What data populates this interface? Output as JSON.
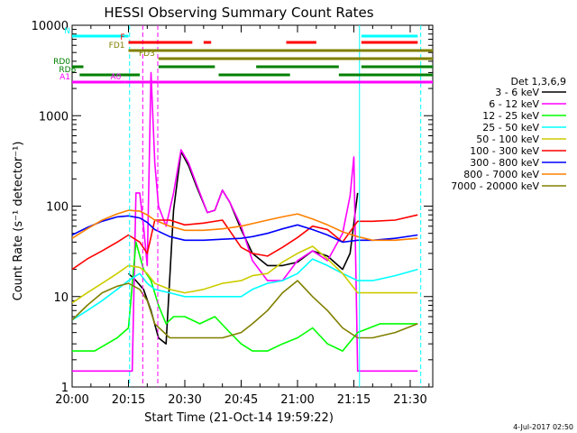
{
  "chart_data": {
    "type": "line",
    "title": "HESSI Observing Summary Count Rates",
    "xlabel": "Start Time (21-Oct-14 19:59:22)",
    "ylabel": "Count Rate (s⁻¹ detector⁻¹)",
    "ylog": true,
    "ylim": [
      1,
      10000
    ],
    "xlim": [
      0,
      96
    ],
    "x_unit": "minutes since 20:00",
    "x_ticks": [
      {
        "value": 0,
        "label": "20:00"
      },
      {
        "value": 15,
        "label": "20:15"
      },
      {
        "value": 30,
        "label": "20:30"
      },
      {
        "value": 45,
        "label": "20:45"
      },
      {
        "value": 60,
        "label": "21:00"
      },
      {
        "value": 75,
        "label": "21:15"
      },
      {
        "value": 90,
        "label": "21:30"
      }
    ],
    "y_ticks": [
      {
        "value": 1,
        "label": "1"
      },
      {
        "value": 10,
        "label": "10"
      },
      {
        "value": 100,
        "label": "100"
      },
      {
        "value": 1000,
        "label": "1000"
      },
      {
        "value": 10000,
        "label": "10000"
      }
    ],
    "legend_title": "Det 1,3,6,9",
    "legend_position": "right",
    "series": [
      {
        "name": "3 - 6 keV",
        "color": "#000000",
        "x": [
          15,
          17,
          19,
          21,
          23,
          25,
          27,
          29,
          31,
          33,
          36,
          38,
          40,
          42,
          45,
          48,
          52,
          56,
          60,
          64,
          68,
          72,
          74,
          76
        ],
        "y": [
          18,
          15,
          12,
          7,
          3.5,
          3,
          90,
          400,
          280,
          170,
          85,
          90,
          150,
          110,
          55,
          30,
          22,
          22,
          24,
          32,
          28,
          20,
          30,
          140
        ]
      },
      {
        "name": "6 - 12 keV",
        "color": "#ff00ff",
        "x": [
          0,
          6,
          12,
          15,
          16,
          17,
          18,
          19,
          20,
          21,
          22,
          23,
          25,
          27,
          29,
          31,
          33,
          36,
          38,
          40,
          42,
          45,
          48,
          52,
          56,
          60,
          64,
          68,
          72,
          74,
          75,
          76,
          80,
          86,
          92
        ],
        "y": [
          1.5,
          1.5,
          1.5,
          1.5,
          1.5,
          140,
          140,
          60,
          22,
          3000,
          300,
          100,
          60,
          140,
          420,
          300,
          180,
          85,
          90,
          150,
          110,
          60,
          25,
          15,
          15,
          25,
          32,
          25,
          50,
          130,
          350,
          1.5,
          1.5,
          1.5,
          1.5
        ]
      },
      {
        "name": "12 - 25 keV",
        "color": "#00ff00",
        "x": [
          0,
          6,
          12,
          15,
          17,
          19,
          21,
          23,
          25,
          27,
          30,
          34,
          38,
          42,
          45,
          48,
          52,
          56,
          60,
          64,
          68,
          72,
          76,
          82,
          88,
          92
        ],
        "y": [
          2.5,
          2.5,
          3.5,
          4.5,
          40,
          20,
          15,
          8,
          5,
          6,
          6,
          5,
          6,
          4,
          3,
          2.5,
          2.5,
          3,
          3.5,
          4.5,
          3,
          2.5,
          4,
          5,
          5,
          5
        ]
      },
      {
        "name": "25 - 50 keV",
        "color": "#00ffff",
        "x": [
          0,
          4,
          8,
          12,
          15,
          18,
          20,
          22,
          26,
          30,
          35,
          40,
          45,
          48,
          52,
          56,
          60,
          64,
          68,
          72,
          76,
          80,
          86,
          92
        ],
        "y": [
          5.5,
          7,
          9,
          12,
          15,
          18,
          14,
          12,
          11,
          10,
          10,
          10,
          10,
          12,
          14,
          15,
          18,
          26,
          22,
          18,
          15,
          15,
          17,
          20
        ]
      },
      {
        "name": "50 - 100 keV",
        "color": "#cccc00",
        "x": [
          0,
          4,
          8,
          12,
          15,
          18,
          20,
          22,
          26,
          30,
          35,
          40,
          45,
          48,
          52,
          56,
          60,
          64,
          68,
          72,
          76,
          80,
          86,
          92
        ],
        "y": [
          8.5,
          11,
          14,
          18,
          22,
          21,
          18,
          14,
          12,
          11,
          12,
          14,
          15,
          17,
          18,
          24,
          30,
          36,
          26,
          18,
          11,
          11,
          11,
          11
        ]
      },
      {
        "name": "100 - 300 keV",
        "color": "#ff0000",
        "x": [
          0,
          4,
          8,
          12,
          15,
          18,
          20,
          22,
          26,
          30,
          35,
          40,
          45,
          48,
          52,
          56,
          60,
          64,
          68,
          72,
          76,
          80,
          86,
          92
        ],
        "y": [
          20,
          26,
          32,
          40,
          48,
          40,
          30,
          70,
          70,
          62,
          65,
          70,
          35,
          30,
          28,
          35,
          45,
          60,
          55,
          40,
          68,
          68,
          70,
          80
        ]
      },
      {
        "name": "300 - 800 keV",
        "color": "#0000ff",
        "x": [
          0,
          4,
          8,
          12,
          15,
          18,
          20,
          22,
          26,
          30,
          35,
          40,
          45,
          48,
          52,
          56,
          60,
          64,
          68,
          72,
          76,
          80,
          86,
          92
        ],
        "y": [
          48,
          58,
          68,
          76,
          78,
          74,
          66,
          55,
          46,
          42,
          42,
          43,
          44,
          46,
          50,
          56,
          62,
          55,
          48,
          40,
          42,
          42,
          44,
          48
        ]
      },
      {
        "name": "800 - 7000 keV",
        "color": "#ff8000",
        "x": [
          0,
          4,
          8,
          12,
          15,
          18,
          20,
          22,
          26,
          30,
          35,
          40,
          45,
          48,
          52,
          56,
          60,
          64,
          68,
          72,
          76,
          80,
          86,
          92
        ],
        "y": [
          44,
          56,
          70,
          82,
          90,
          88,
          80,
          70,
          60,
          54,
          54,
          56,
          60,
          64,
          70,
          76,
          82,
          72,
          62,
          52,
          46,
          42,
          42,
          44
        ]
      },
      {
        "name": "7000 - 20000 keV",
        "color": "#808000",
        "x": [
          0,
          4,
          8,
          12,
          15,
          18,
          20,
          22,
          26,
          30,
          35,
          40,
          45,
          48,
          52,
          56,
          60,
          64,
          68,
          72,
          76,
          80,
          86,
          92
        ],
        "y": [
          5.5,
          8,
          11,
          13,
          14,
          12,
          9,
          5,
          3.5,
          3.5,
          3.5,
          3.5,
          4,
          5,
          7,
          11,
          15,
          10,
          7,
          4.5,
          3.5,
          3.5,
          4,
          5
        ]
      }
    ],
    "flag_bars": [
      {
        "label": "N",
        "color": "#00ffff",
        "segments": [
          [
            0,
            15
          ],
          [
            77,
            92
          ]
        ]
      },
      {
        "label": "F",
        "color": "#ff0000",
        "segments": [
          [
            15,
            32
          ],
          [
            35,
            37
          ],
          [
            57,
            65
          ],
          [
            77,
            92
          ]
        ]
      },
      {
        "label": "FD1",
        "color": "#808000",
        "segments": [
          [
            15,
            96
          ]
        ]
      },
      {
        "label": "FD3",
        "color": "#808000",
        "segments": [
          [
            23,
            96
          ]
        ]
      },
      {
        "label": "RD0",
        "color": "#008000",
        "segments": [
          [
            0,
            3
          ],
          [
            23,
            38
          ],
          [
            49,
            71
          ],
          [
            77,
            96
          ]
        ]
      },
      {
        "label": "RD6",
        "color": "#008000",
        "segments": [
          [
            2,
            18
          ],
          [
            39,
            58
          ],
          [
            71,
            96
          ]
        ]
      },
      {
        "label": "A1",
        "color": "#ff00ff",
        "segments": [
          [
            0,
            14
          ],
          [
            23,
            96
          ]
        ]
      },
      {
        "label": "A0",
        "color": "#ff00ff",
        "segments": [
          [
            14,
            23
          ]
        ]
      }
    ],
    "vertical_markers": [
      {
        "x": 15.3,
        "color": "#00ffff",
        "dashed": true
      },
      {
        "x": 18.8,
        "color": "#ff00ff",
        "dashed": true
      },
      {
        "x": 22.8,
        "color": "#ff00ff",
        "dashed": true
      },
      {
        "x": 76.5,
        "color": "#00ffff",
        "dashed": false
      },
      {
        "x": 92.8,
        "color": "#00ffff",
        "dashed": true
      }
    ]
  },
  "footer_date": "4-Jul-2017 02:50"
}
